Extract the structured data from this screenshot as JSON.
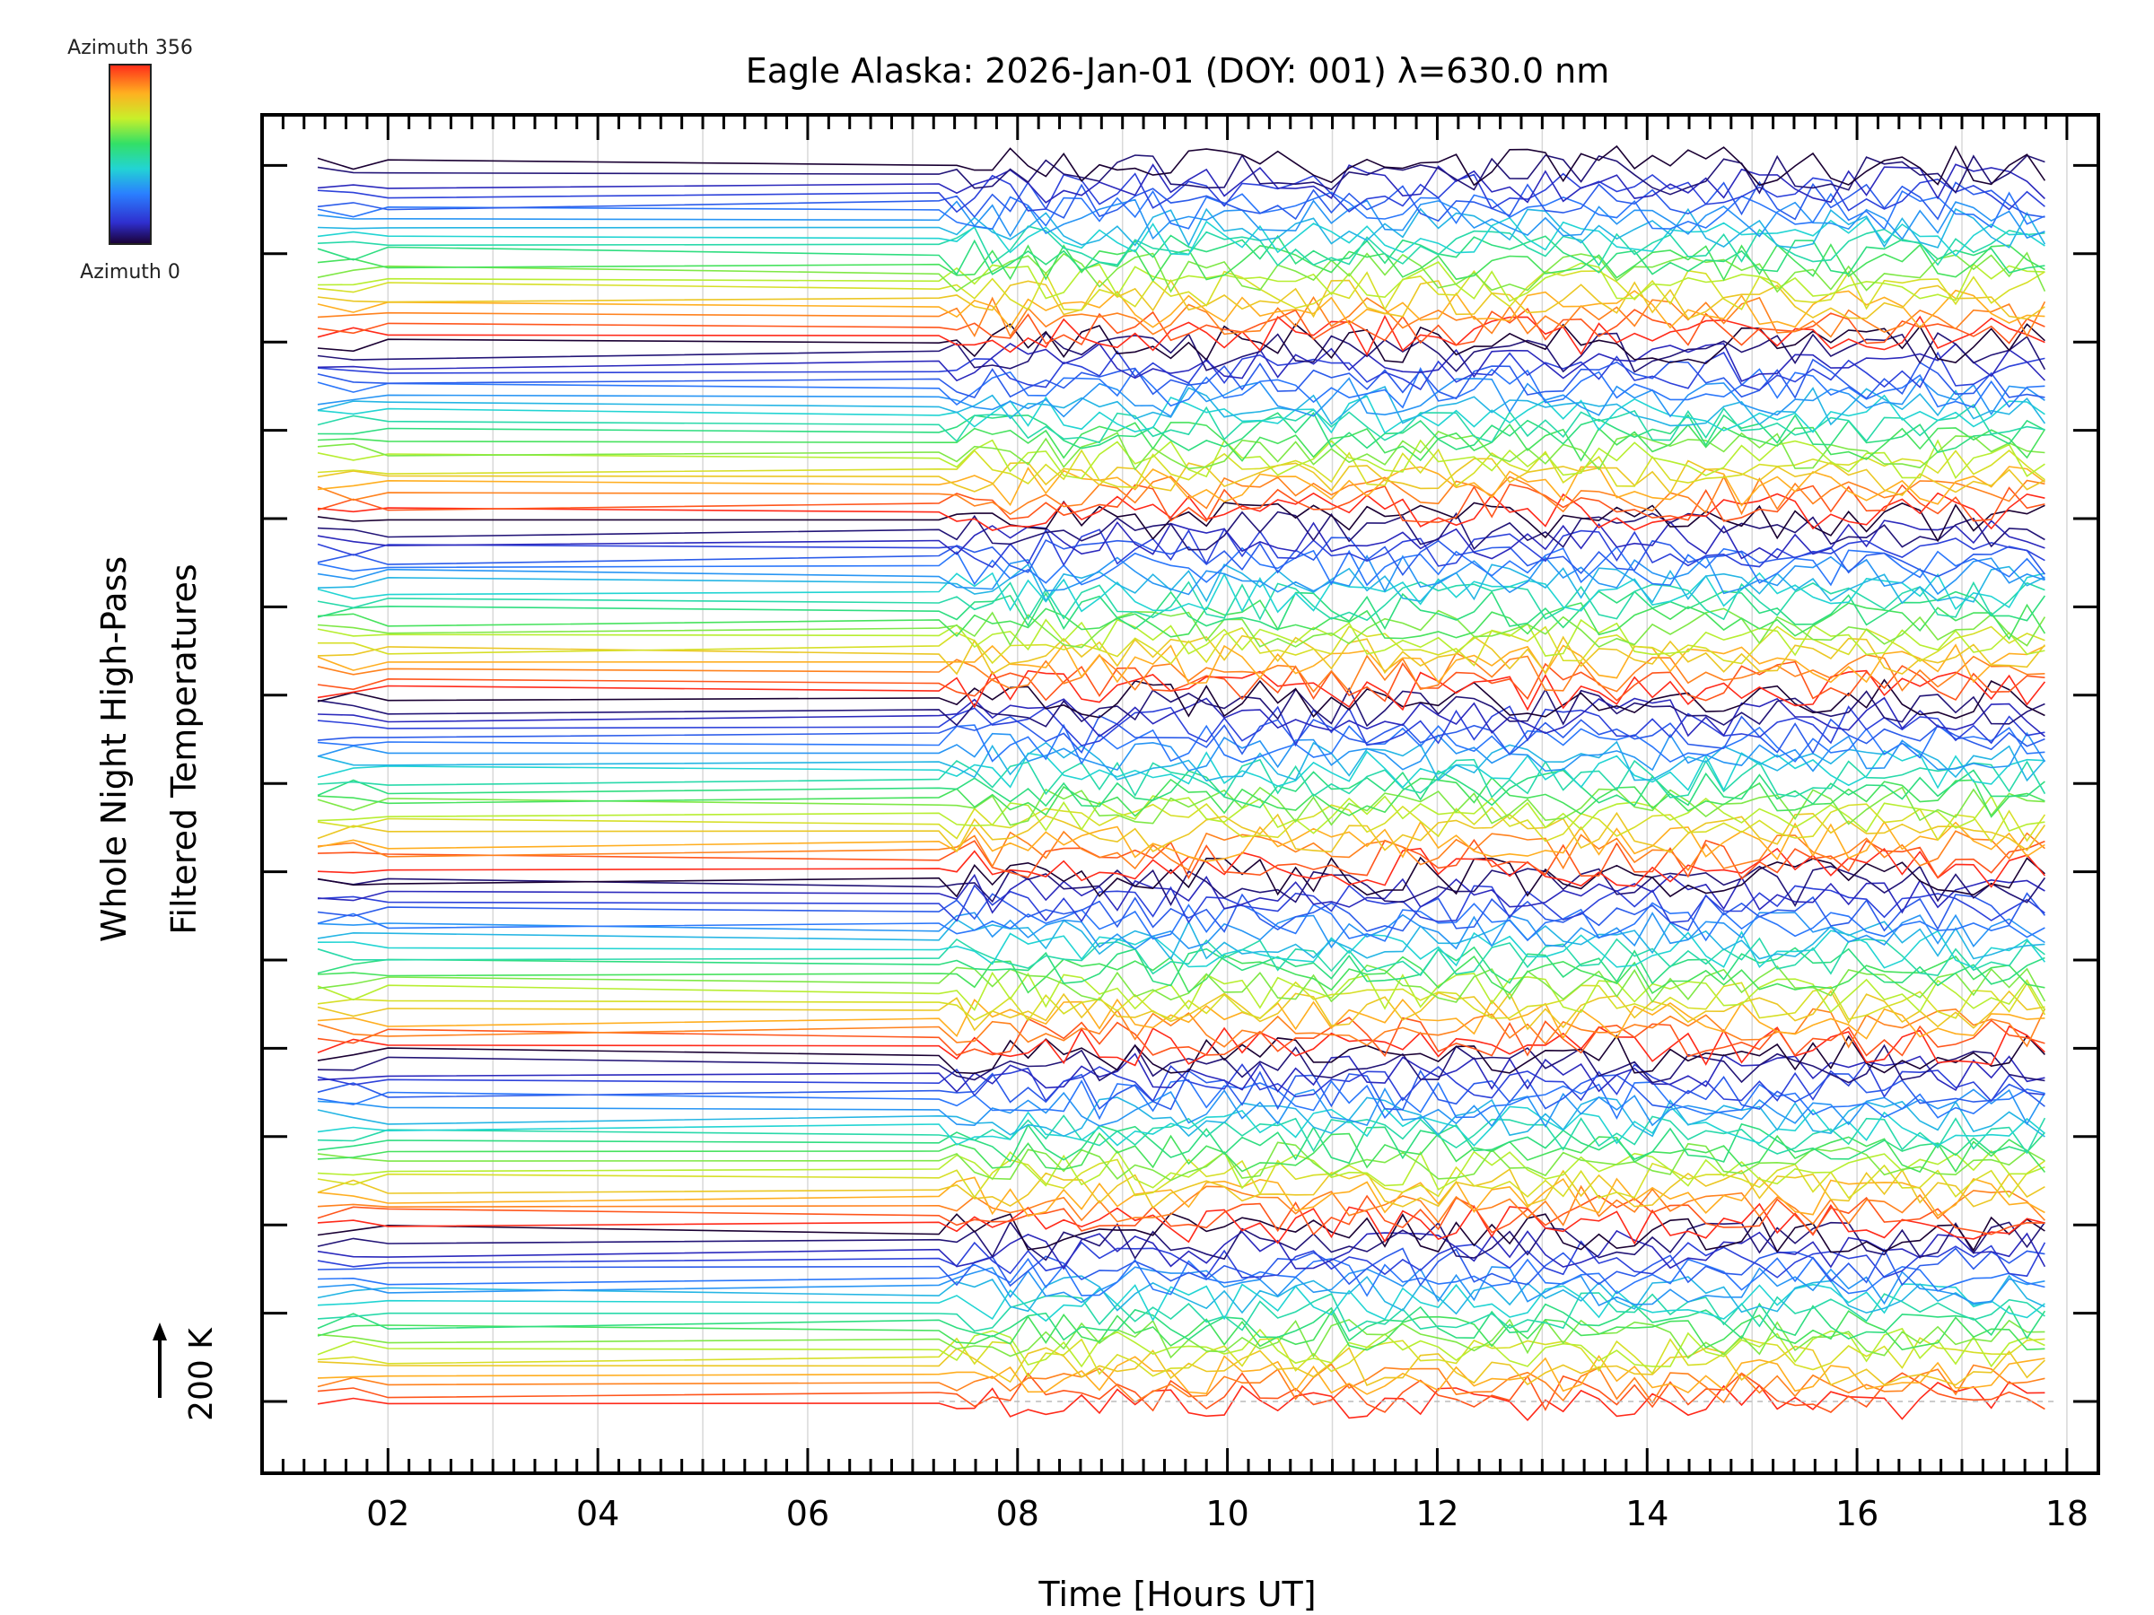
{
  "chart_data": {
    "type": "line",
    "title": "Eagle Alaska: 2026-Jan-01 (DOY: 001) λ=630.0 nm",
    "xlabel": "Time [Hours UT]",
    "ylabel_lines": [
      "Whole Night High-Pass",
      "Filtered Temperatures"
    ],
    "xlim": [
      0.8,
      18.3
    ],
    "x_ticks": [
      2,
      4,
      6,
      8,
      10,
      12,
      14,
      16,
      18
    ],
    "x_tick_labels": [
      "02",
      "04",
      "06",
      "08",
      "10",
      "12",
      "14",
      "16",
      "18"
    ],
    "grid": true,
    "colorbar": {
      "top_label": "Azimuth 356",
      "bottom_label": "Azimuth 0",
      "colormap": "rainbow",
      "range": [
        0,
        356
      ]
    },
    "scale_bar": {
      "label": "200 K"
    },
    "series_count": 140,
    "data_gap_hours": [
      2.0,
      7.25
    ],
    "time_range_hours": [
      1.33,
      17.9
    ],
    "note_values": "Stacked offset traces, one per azimuth, color-coded by azimuth"
  }
}
